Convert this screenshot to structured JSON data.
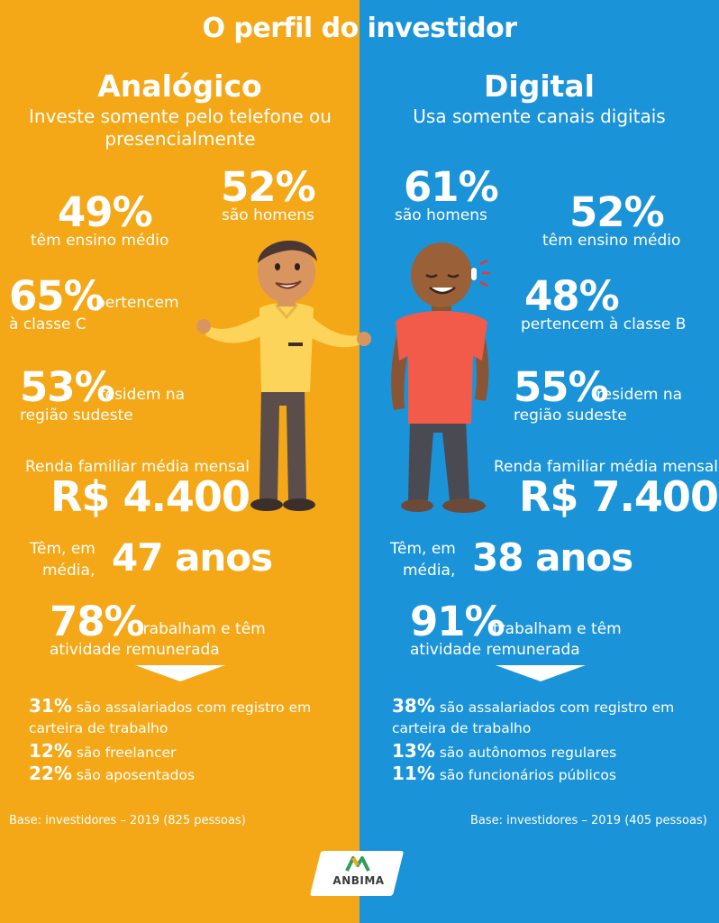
{
  "title": "O perfil do investidor",
  "colors": {
    "left_bg": "#F5A817",
    "right_bg": "#1B93D9"
  },
  "left": {
    "heading": "Analógico",
    "subtitle": "Investe somente pelo telefone ou presencialmente",
    "men_pct": "52%",
    "men_label": "são homens",
    "edu_pct": "49%",
    "edu_label": "têm ensino médio",
    "class_pct": "65%",
    "class_label_a": "pertencem",
    "class_label_b": "à classe C",
    "region_pct": "53%",
    "region_label_a": "residem na",
    "region_label_b": "região sudeste",
    "income_label": "Renda familiar média mensal",
    "income_value": "R$ 4.400",
    "age_label_a": "Têm, em",
    "age_label_b": "média,",
    "age_value": "47 anos",
    "work_pct": "78%",
    "work_label_a": "trabalham e têm",
    "work_label_b": "atividade remunerada",
    "breakdown": [
      {
        "pct": "31%",
        "text": "são assalariados com registro em",
        "text2": "carteira de trabalho"
      },
      {
        "pct": "12%",
        "text": "são freelancer"
      },
      {
        "pct": "22%",
        "text": "são aposentados"
      }
    ],
    "base": "Base: investidores – 2019 (825 pessoas)"
  },
  "right": {
    "heading": "Digital",
    "subtitle": "Usa somente canais digitais",
    "men_pct": "61%",
    "men_label": "são homens",
    "edu_pct": "52%",
    "edu_label": "têm ensino médio",
    "class_pct": "48%",
    "class_label": "pertencem à classe B",
    "region_pct": "55%",
    "region_label_a": "residem na",
    "region_label_b": "região sudeste",
    "income_label": "Renda familiar média mensal",
    "income_value": "R$ 7.400",
    "age_label_a": "Têm, em",
    "age_label_b": "média,",
    "age_value": "38 anos",
    "work_pct": "91%",
    "work_label_a": "trabalham e têm",
    "work_label_b": "atividade remunerada",
    "breakdown": [
      {
        "pct": "38%",
        "text": "são assalariados com registro em",
        "text2": "carteira de trabalho"
      },
      {
        "pct": "13%",
        "text": "são autônomos regulares"
      },
      {
        "pct": "11%",
        "text": "são funcionários públicos"
      }
    ],
    "base": "Base: investidores – 2019 (405 pessoas)"
  },
  "logo": {
    "text": "ANBIMA",
    "icon": "anbima-m-logo-icon"
  }
}
